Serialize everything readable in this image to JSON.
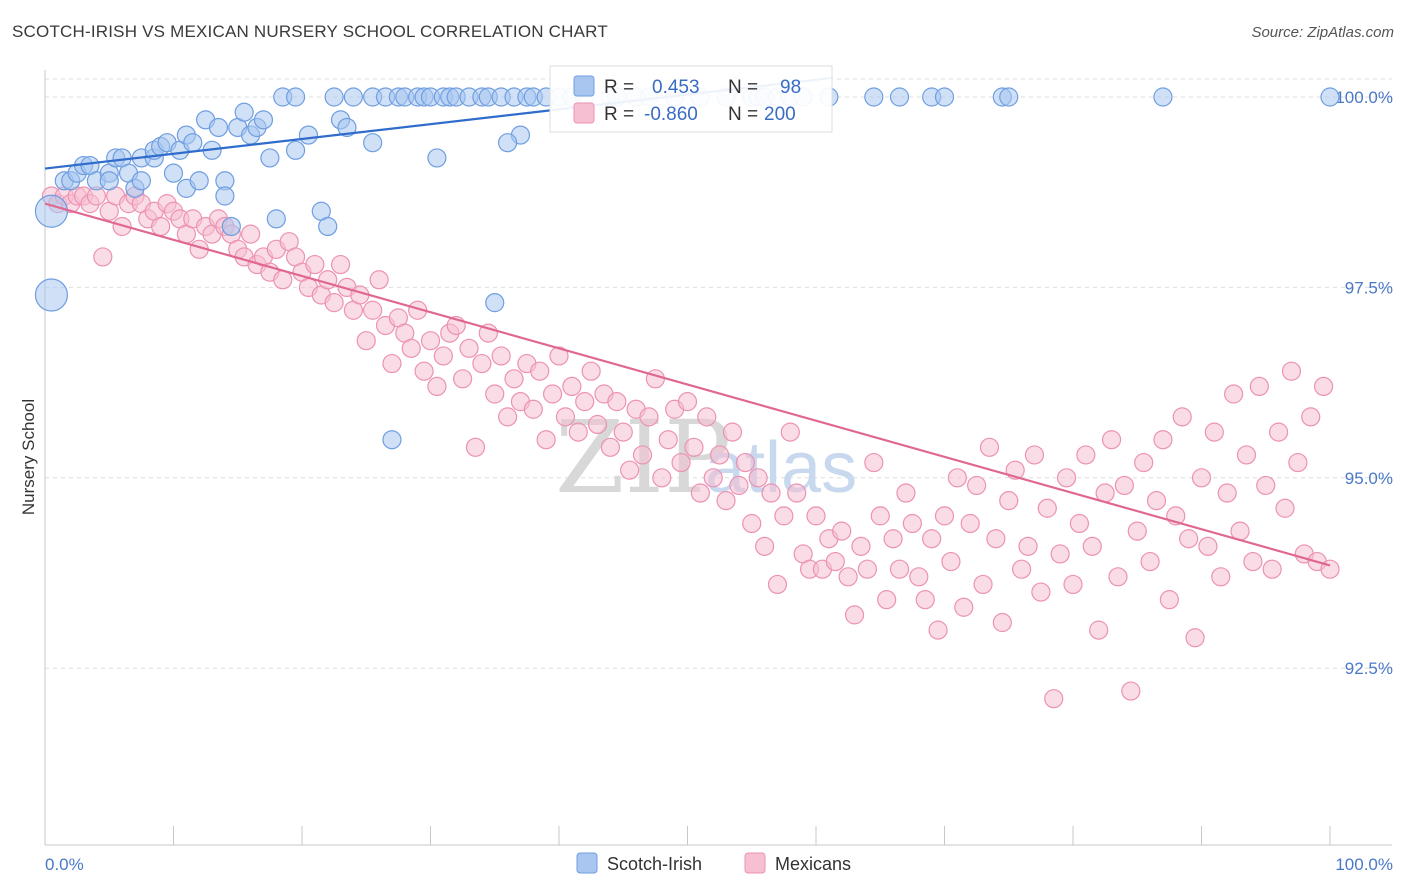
{
  "title": "SCOTCH-IRISH VS MEXICAN NURSERY SCHOOL CORRELATION CHART",
  "source": "Source: ZipAtlas.com",
  "watermark": {
    "zip": "ZIP",
    "atlas": "atlas"
  },
  "colors": {
    "scotch_fill": "#a8c6f0",
    "scotch_stroke": "#6f9ee0",
    "scotch_line": "#2f6ccc",
    "mex_fill": "#f6c0d2",
    "mex_stroke": "#ec92b2",
    "mex_line": "#e0678f",
    "grid": "#dddddd",
    "axis_text": "#4a78c8"
  },
  "legend": {
    "rows": [
      {
        "series": "Scotch-Irish",
        "r_label": "R =",
        "r_value": "0.453",
        "n_label": "N =",
        "n_value": "98"
      },
      {
        "series": "Mexicans",
        "r_label": "R =",
        "r_value": "-0.860",
        "n_label": "N =",
        "n_value": "200"
      }
    ]
  },
  "chart_data": {
    "type": "scatter",
    "title": "SCOTCH-IRISH VS MEXICAN NURSERY SCHOOL CORRELATION CHART",
    "xlabel": "",
    "ylabel": "Nursery School",
    "xlim": [
      0,
      100
    ],
    "ylim": [
      90.0,
      100.4
    ],
    "x_tick_labels": [
      "0.0%",
      "100.0%"
    ],
    "y_ticks": [
      {
        "value": 100.0,
        "label": "100.0%"
      },
      {
        "value": 97.5,
        "label": "97.5%"
      },
      {
        "value": 95.0,
        "label": "95.0%"
      },
      {
        "value": 92.5,
        "label": "92.5%"
      }
    ],
    "grid": true,
    "legend_position": "bottom-center",
    "series": [
      {
        "name": "Scotch-Irish",
        "trend": {
          "x": [
            0,
            61.2
          ],
          "y": [
            99.06,
            100.25
          ]
        },
        "points": [
          [
            0.5,
            98.5
          ],
          [
            0.5,
            97.4
          ],
          [
            1.5,
            98.9
          ],
          [
            2.0,
            98.9
          ],
          [
            2.5,
            99.0
          ],
          [
            3.0,
            99.1
          ],
          [
            3.5,
            99.1
          ],
          [
            4.0,
            98.9
          ],
          [
            5.0,
            99.0
          ],
          [
            5.0,
            98.9
          ],
          [
            5.5,
            99.2
          ],
          [
            6.0,
            99.2
          ],
          [
            6.5,
            99.0
          ],
          [
            7.0,
            98.8
          ],
          [
            7.5,
            99.2
          ],
          [
            7.5,
            98.9
          ],
          [
            8.5,
            99.2
          ],
          [
            8.5,
            99.3
          ],
          [
            9.0,
            99.35
          ],
          [
            9.5,
            99.4
          ],
          [
            10.0,
            99.0
          ],
          [
            10.5,
            99.3
          ],
          [
            11.0,
            98.8
          ],
          [
            11.0,
            99.5
          ],
          [
            11.5,
            99.4
          ],
          [
            12.0,
            98.9
          ],
          [
            12.5,
            99.7
          ],
          [
            13.0,
            99.3
          ],
          [
            13.5,
            99.6
          ],
          [
            14.0,
            98.9
          ],
          [
            14.0,
            98.7
          ],
          [
            14.5,
            98.3
          ],
          [
            15.0,
            99.6
          ],
          [
            15.5,
            99.8
          ],
          [
            16.0,
            99.5
          ],
          [
            16.5,
            99.6
          ],
          [
            17.0,
            99.7
          ],
          [
            17.5,
            99.2
          ],
          [
            18.0,
            98.4
          ],
          [
            18.5,
            100.0
          ],
          [
            19.5,
            100.0
          ],
          [
            19.5,
            99.3
          ],
          [
            20.5,
            99.5
          ],
          [
            21.5,
            98.5
          ],
          [
            22.0,
            98.3
          ],
          [
            22.5,
            100.0
          ],
          [
            23.0,
            99.7
          ],
          [
            23.5,
            99.6
          ],
          [
            24.0,
            100.0
          ],
          [
            25.5,
            99.4
          ],
          [
            25.5,
            100.0
          ],
          [
            26.5,
            100.0
          ],
          [
            27.0,
            95.5
          ],
          [
            27.5,
            100.0
          ],
          [
            28.0,
            100.0
          ],
          [
            29.0,
            100.0
          ],
          [
            29.5,
            100.0
          ],
          [
            30.0,
            100.0
          ],
          [
            30.5,
            99.2
          ],
          [
            31.0,
            100.0
          ],
          [
            31.5,
            100.0
          ],
          [
            32.0,
            100.0
          ],
          [
            33.0,
            100.0
          ],
          [
            34.0,
            100.0
          ],
          [
            34.5,
            100.0
          ],
          [
            35.0,
            97.3
          ],
          [
            35.5,
            100.0
          ],
          [
            36.5,
            100.0
          ],
          [
            37.0,
            99.5
          ],
          [
            37.5,
            100.0
          ],
          [
            38.0,
            100.0
          ],
          [
            39.0,
            100.0
          ],
          [
            40.0,
            100.0
          ],
          [
            41.0,
            100.0
          ],
          [
            42.0,
            100.0
          ],
          [
            44.0,
            100.0
          ],
          [
            44.5,
            100.0
          ],
          [
            46.0,
            100.0
          ],
          [
            47.0,
            100.0
          ],
          [
            49.0,
            100.0
          ],
          [
            51.0,
            100.0
          ],
          [
            53.0,
            100.0
          ],
          [
            55.0,
            100.0
          ],
          [
            55.5,
            100.0
          ],
          [
            56.0,
            100.0
          ],
          [
            57.0,
            100.0
          ],
          [
            58.0,
            100.0
          ],
          [
            59.0,
            100.0
          ],
          [
            61.0,
            100.0
          ],
          [
            64.5,
            100.0
          ],
          [
            66.5,
            100.0
          ],
          [
            69.0,
            100.0
          ],
          [
            70.0,
            100.0
          ],
          [
            74.5,
            100.0
          ],
          [
            75.0,
            100.0
          ],
          [
            87.0,
            100.0
          ],
          [
            100.0,
            100.0
          ],
          [
            36.0,
            99.4
          ]
        ]
      },
      {
        "name": "Mexicans",
        "trend": {
          "x": [
            0,
            100
          ],
          "y": [
            98.6,
            93.85
          ]
        },
        "points": [
          [
            0.5,
            98.7
          ],
          [
            1.0,
            98.6
          ],
          [
            1.5,
            98.7
          ],
          [
            2.0,
            98.6
          ],
          [
            2.5,
            98.7
          ],
          [
            3.0,
            98.7
          ],
          [
            3.5,
            98.6
          ],
          [
            4.0,
            98.7
          ],
          [
            4.5,
            97.9
          ],
          [
            5.0,
            98.5
          ],
          [
            5.5,
            98.7
          ],
          [
            6.0,
            98.3
          ],
          [
            6.5,
            98.6
          ],
          [
            7.0,
            98.7
          ],
          [
            7.5,
            98.6
          ],
          [
            8.0,
            98.4
          ],
          [
            8.5,
            98.5
          ],
          [
            9.0,
            98.3
          ],
          [
            9.5,
            98.6
          ],
          [
            10.0,
            98.5
          ],
          [
            10.5,
            98.4
          ],
          [
            11.0,
            98.2
          ],
          [
            11.5,
            98.4
          ],
          [
            12.0,
            98.0
          ],
          [
            12.5,
            98.3
          ],
          [
            13.0,
            98.2
          ],
          [
            13.5,
            98.4
          ],
          [
            14.0,
            98.3
          ],
          [
            14.5,
            98.2
          ],
          [
            15.0,
            98.0
          ],
          [
            15.5,
            97.9
          ],
          [
            16.0,
            98.2
          ],
          [
            16.5,
            97.8
          ],
          [
            17.0,
            97.9
          ],
          [
            17.5,
            97.7
          ],
          [
            18.0,
            98.0
          ],
          [
            18.5,
            97.6
          ],
          [
            19.0,
            98.1
          ],
          [
            19.5,
            97.9
          ],
          [
            20.0,
            97.7
          ],
          [
            20.5,
            97.5
          ],
          [
            21.0,
            97.8
          ],
          [
            21.5,
            97.4
          ],
          [
            22.0,
            97.6
          ],
          [
            22.5,
            97.3
          ],
          [
            23.0,
            97.8
          ],
          [
            23.5,
            97.5
          ],
          [
            24.0,
            97.2
          ],
          [
            24.5,
            97.4
          ],
          [
            25.0,
            96.8
          ],
          [
            25.5,
            97.2
          ],
          [
            26.0,
            97.6
          ],
          [
            26.5,
            97.0
          ],
          [
            27.0,
            96.5
          ],
          [
            27.5,
            97.1
          ],
          [
            28.0,
            96.9
          ],
          [
            28.5,
            96.7
          ],
          [
            29.0,
            97.2
          ],
          [
            29.5,
            96.4
          ],
          [
            30.0,
            96.8
          ],
          [
            30.5,
            96.2
          ],
          [
            31.0,
            96.6
          ],
          [
            31.5,
            96.9
          ],
          [
            32.0,
            97.0
          ],
          [
            32.5,
            96.3
          ],
          [
            33.0,
            96.7
          ],
          [
            33.5,
            95.4
          ],
          [
            34.0,
            96.5
          ],
          [
            34.5,
            96.9
          ],
          [
            35.0,
            96.1
          ],
          [
            35.5,
            96.6
          ],
          [
            36.0,
            95.8
          ],
          [
            36.5,
            96.3
          ],
          [
            37.0,
            96.0
          ],
          [
            37.5,
            96.5
          ],
          [
            38.0,
            95.9
          ],
          [
            38.5,
            96.4
          ],
          [
            39.0,
            95.5
          ],
          [
            39.5,
            96.1
          ],
          [
            40.0,
            96.6
          ],
          [
            40.5,
            95.8
          ],
          [
            41.0,
            96.2
          ],
          [
            41.5,
            95.6
          ],
          [
            42.0,
            96.0
          ],
          [
            42.5,
            96.4
          ],
          [
            43.0,
            95.7
          ],
          [
            43.5,
            96.1
          ],
          [
            44.0,
            95.4
          ],
          [
            44.5,
            96.0
          ],
          [
            45.0,
            95.6
          ],
          [
            45.5,
            95.1
          ],
          [
            46.0,
            95.9
          ],
          [
            46.5,
            95.3
          ],
          [
            47.0,
            95.8
          ],
          [
            47.5,
            96.3
          ],
          [
            48.0,
            95.0
          ],
          [
            48.5,
            95.5
          ],
          [
            49.0,
            95.9
          ],
          [
            49.5,
            95.2
          ],
          [
            50.0,
            96.0
          ],
          [
            50.5,
            95.4
          ],
          [
            51.0,
            94.8
          ],
          [
            51.5,
            95.8
          ],
          [
            52.0,
            95.0
          ],
          [
            52.5,
            95.3
          ],
          [
            53.0,
            94.7
          ],
          [
            53.5,
            95.6
          ],
          [
            54.0,
            94.9
          ],
          [
            54.5,
            95.2
          ],
          [
            55.0,
            94.4
          ],
          [
            55.5,
            95.0
          ],
          [
            56.0,
            94.1
          ],
          [
            56.5,
            94.8
          ],
          [
            57.0,
            93.6
          ],
          [
            57.5,
            94.5
          ],
          [
            58.0,
            95.6
          ],
          [
            58.5,
            94.8
          ],
          [
            59.0,
            94.0
          ],
          [
            59.5,
            93.8
          ],
          [
            60.0,
            94.5
          ],
          [
            60.5,
            93.8
          ],
          [
            61.0,
            94.2
          ],
          [
            61.5,
            93.9
          ],
          [
            62.0,
            94.3
          ],
          [
            62.5,
            93.7
          ],
          [
            63.0,
            93.2
          ],
          [
            63.5,
            94.1
          ],
          [
            64.0,
            93.8
          ],
          [
            64.5,
            95.2
          ],
          [
            65.0,
            94.5
          ],
          [
            65.5,
            93.4
          ],
          [
            66.0,
            94.2
          ],
          [
            66.5,
            93.8
          ],
          [
            67.0,
            94.8
          ],
          [
            67.5,
            94.4
          ],
          [
            68.0,
            93.7
          ],
          [
            68.5,
            93.4
          ],
          [
            69.0,
            94.2
          ],
          [
            69.5,
            93.0
          ],
          [
            70.0,
            94.5
          ],
          [
            70.5,
            93.9
          ],
          [
            71.0,
            95.0
          ],
          [
            71.5,
            93.3
          ],
          [
            72.0,
            94.4
          ],
          [
            72.5,
            94.9
          ],
          [
            73.0,
            93.6
          ],
          [
            73.5,
            95.4
          ],
          [
            74.0,
            94.2
          ],
          [
            74.5,
            93.1
          ],
          [
            75.0,
            94.7
          ],
          [
            75.5,
            95.1
          ],
          [
            76.0,
            93.8
          ],
          [
            76.5,
            94.1
          ],
          [
            77.0,
            95.3
          ],
          [
            77.5,
            93.5
          ],
          [
            78.0,
            94.6
          ],
          [
            78.5,
            92.1
          ],
          [
            79.0,
            94.0
          ],
          [
            79.5,
            95.0
          ],
          [
            80.0,
            93.6
          ],
          [
            80.5,
            94.4
          ],
          [
            81.0,
            95.3
          ],
          [
            81.5,
            94.1
          ],
          [
            82.0,
            93.0
          ],
          [
            82.5,
            94.8
          ],
          [
            83.0,
            95.5
          ],
          [
            83.5,
            93.7
          ],
          [
            84.0,
            94.9
          ],
          [
            84.5,
            92.2
          ],
          [
            85.0,
            94.3
          ],
          [
            85.5,
            95.2
          ],
          [
            86.0,
            93.9
          ],
          [
            86.5,
            94.7
          ],
          [
            87.0,
            95.5
          ],
          [
            87.5,
            93.4
          ],
          [
            88.0,
            94.5
          ],
          [
            88.5,
            95.8
          ],
          [
            89.0,
            94.2
          ],
          [
            89.5,
            92.9
          ],
          [
            90.0,
            95.0
          ],
          [
            90.5,
            94.1
          ],
          [
            91.0,
            95.6
          ],
          [
            91.5,
            93.7
          ],
          [
            92.0,
            94.8
          ],
          [
            92.5,
            96.1
          ],
          [
            93.0,
            94.3
          ],
          [
            93.5,
            95.3
          ],
          [
            94.0,
            93.9
          ],
          [
            94.5,
            96.2
          ],
          [
            95.0,
            94.9
          ],
          [
            95.5,
            93.8
          ],
          [
            96.0,
            95.6
          ],
          [
            96.5,
            94.6
          ],
          [
            97.0,
            96.4
          ],
          [
            97.5,
            95.2
          ],
          [
            98.0,
            94.0
          ],
          [
            98.5,
            95.8
          ],
          [
            99.0,
            93.9
          ],
          [
            99.5,
            96.2
          ],
          [
            100.0,
            93.8
          ]
        ]
      }
    ]
  }
}
